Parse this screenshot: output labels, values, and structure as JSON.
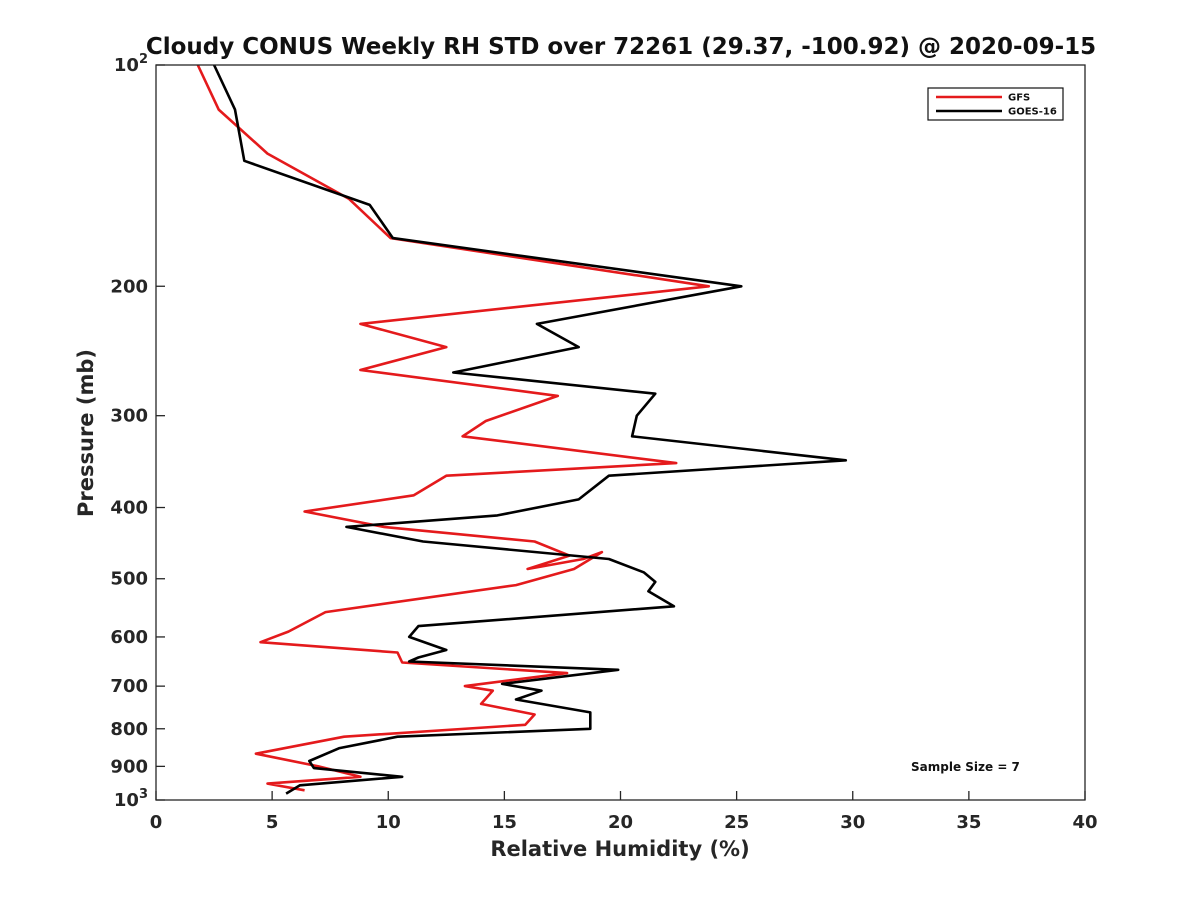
{
  "chart_data": {
    "type": "line",
    "title": "Cloudy CONUS Weekly RH STD over 72261 (29.37, -100.92) @ 2020-09-15",
    "xlabel": "Relative Humidity (%)",
    "ylabel": "Pressure (mb)",
    "xlim": [
      0,
      40
    ],
    "ylim": [
      100,
      1000
    ],
    "yscale": "log",
    "y_reversed": true,
    "grid": false,
    "legend_position": "top-right",
    "x_ticks": [
      0,
      5,
      10,
      15,
      20,
      25,
      30,
      35,
      40
    ],
    "x_tick_labels": [
      "0",
      "5",
      "10",
      "15",
      "20",
      "25",
      "30",
      "35",
      "40"
    ],
    "y_ticks": [
      100,
      200,
      300,
      400,
      500,
      600,
      700,
      800,
      900,
      1000
    ],
    "y_tick_labels": [
      "10^2",
      "200",
      "300",
      "400",
      "500",
      "600",
      "700",
      "800",
      "900",
      "10^3"
    ],
    "annotation": "Sample Size = 7",
    "series": [
      {
        "name": "GFS",
        "color": "#e41a1c",
        "x": [
          1.8,
          2.7,
          4.8,
          8.3,
          10.1,
          23.8,
          8.8,
          12.5,
          8.8,
          17.3,
          14.2,
          13.2,
          22.4,
          12.5,
          11.1,
          6.4,
          9.8,
          16.3,
          17.8,
          16.0,
          18.4,
          19.2,
          18.0,
          15.5,
          7.3,
          5.7,
          4.5,
          10.4,
          10.6,
          17.7,
          13.3,
          14.5,
          14.0,
          16.3,
          15.9,
          8.1,
          4.3,
          7.0,
          8.8,
          4.8,
          6.4
        ],
        "y": [
          100,
          115,
          132,
          152,
          172,
          200,
          225,
          242,
          260,
          282,
          305,
          320,
          348,
          362,
          385,
          405,
          425,
          445,
          465,
          485,
          470,
          460,
          485,
          510,
          555,
          590,
          610,
          630,
          650,
          672,
          700,
          710,
          740,
          765,
          790,
          820,
          865,
          900,
          930,
          950,
          970
        ]
      },
      {
        "name": "GOES-16",
        "color": "#000000",
        "x": [
          2.5,
          3.4,
          3.8,
          9.2,
          10.2,
          25.2,
          16.4,
          18.2,
          12.8,
          21.5,
          20.7,
          20.5,
          29.7,
          19.5,
          18.2,
          14.7,
          8.2,
          11.5,
          19.5,
          21.0,
          21.5,
          21.2,
          22.3,
          11.3,
          10.9,
          12.5,
          11.3,
          10.9,
          19.9,
          14.9,
          16.6,
          15.5,
          18.7,
          18.7,
          10.4,
          7.9,
          6.6,
          6.8,
          10.6,
          6.2,
          5.6
        ],
        "y": [
          100,
          115,
          135,
          155,
          172,
          200,
          225,
          242,
          262,
          280,
          300,
          320,
          345,
          362,
          390,
          410,
          425,
          445,
          470,
          490,
          505,
          520,
          545,
          580,
          600,
          625,
          640,
          648,
          665,
          695,
          710,
          730,
          760,
          800,
          820,
          850,
          885,
          905,
          930,
          955,
          980
        ]
      }
    ]
  }
}
